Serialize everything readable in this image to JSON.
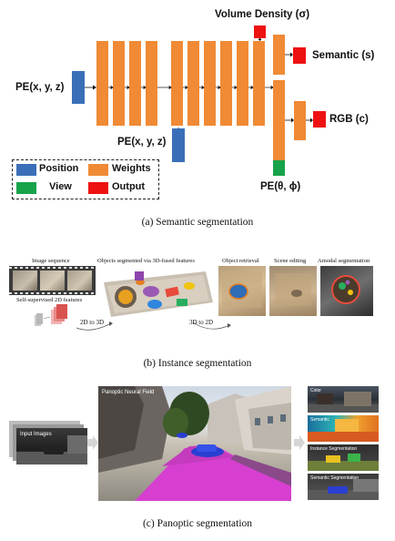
{
  "colors": {
    "position": "#3a6fb8",
    "weights": "#f08a35",
    "view": "#17a34a",
    "output": "#ee1111"
  },
  "panel_a": {
    "caption": "(a)  Semantic segmentation",
    "labels": {
      "volume_density": "Volume Density (σ)",
      "semantic": "Semantic (s)",
      "rgb": "RGB (c)",
      "pe_xyz_left": "PE(x, y, z)",
      "pe_xyz_mid": "PE(x, y, z)",
      "pe_theta_phi": "PE(θ, ϕ)"
    },
    "legend": [
      {
        "label": "Position",
        "color_key": "position"
      },
      {
        "label": "Weights",
        "color_key": "weights"
      },
      {
        "label": "View",
        "color_key": "view"
      },
      {
        "label": "Output",
        "color_key": "output"
      }
    ]
  },
  "panel_b": {
    "caption": "(b)  Instance segmentation",
    "labels": {
      "image_sequence": "Image sequence",
      "self_supervised": "Self-supervised 2D features",
      "objects_segmented": "Objects segmented via 3D-fused features",
      "object_retrieval": "Object retrieval",
      "scene_editing": "Scene editing",
      "amodal_segmentation": "Amodal segmentation",
      "two_d_to_three_d": "2D to 3D",
      "three_d_to_two_d": "3D to 2D"
    }
  },
  "panel_c": {
    "caption": "(c)  Panoptic segmentation",
    "labels": {
      "input_images": "Input Images",
      "panoptic_neural_field": "Panoptic Neural Field",
      "color": "Color",
      "semantic": "Semantic",
      "instance_segmentation": "Instance Segmentation",
      "semantic_segmentation": "Semantic Segmentation"
    }
  }
}
